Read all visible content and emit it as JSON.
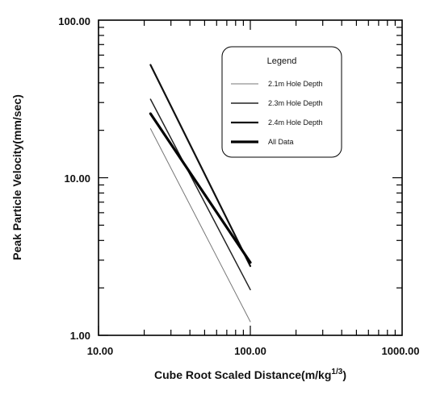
{
  "chart_data": {
    "type": "line",
    "xlabel": "Cube Root Scaled Distance(m/kg",
    "xlabel_sup": "1/3",
    "xlabel_end": ")",
    "ylabel": "Peak Particle Velocity(mm/sec)",
    "xscale": "log",
    "yscale": "log",
    "xlim": [
      10,
      1000
    ],
    "ylim": [
      1,
      100
    ],
    "x_tick_labels": [
      "10.00",
      "100.00",
      "1000.00"
    ],
    "y_tick_labels": [
      "1.00",
      "10.00",
      "100.00"
    ],
    "grid": false,
    "legend": {
      "title": "Legend",
      "position": "top-right"
    },
    "series": [
      {
        "name": "2.1m Hole Depth",
        "x": [
          22,
          100
        ],
        "y": [
          20.5,
          1.22
        ],
        "color": "#777777",
        "width": 1
      },
      {
        "name": "2.3m Hole Depth",
        "x": [
          22,
          100
        ],
        "y": [
          31.5,
          1.95
        ],
        "color": "#222222",
        "width": 1.5
      },
      {
        "name": "2.4m Hole Depth",
        "x": [
          22,
          100
        ],
        "y": [
          52,
          2.75
        ],
        "color": "#111111",
        "width": 2.2
      },
      {
        "name": "All Data",
        "x": [
          22,
          100
        ],
        "y": [
          25.5,
          2.9
        ],
        "color": "#000000",
        "width": 3.2
      }
    ]
  }
}
